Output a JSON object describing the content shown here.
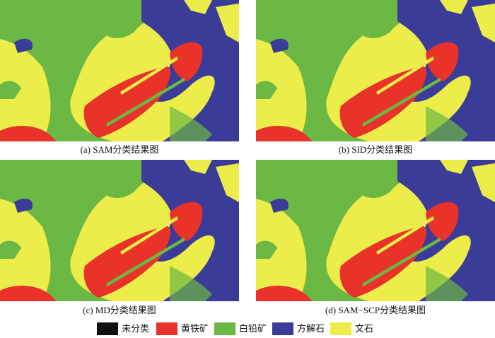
{
  "panels": [
    {
      "caption": "(a) SAM分类结果图"
    },
    {
      "caption": "(b) SID分类结果图"
    },
    {
      "caption": "(c) MD分类结果图"
    },
    {
      "caption": "(d) SAM−SCP分类结果图"
    }
  ],
  "legend": [
    {
      "label": "未分类",
      "color": "#111111"
    },
    {
      "label": "黄铁矿",
      "color": "#e8322a"
    },
    {
      "label": "白铅矿",
      "color": "#6cb844"
    },
    {
      "label": "方解石",
      "color": "#3b3b98"
    },
    {
      "label": "文石",
      "color": "#ecec4a"
    }
  ]
}
